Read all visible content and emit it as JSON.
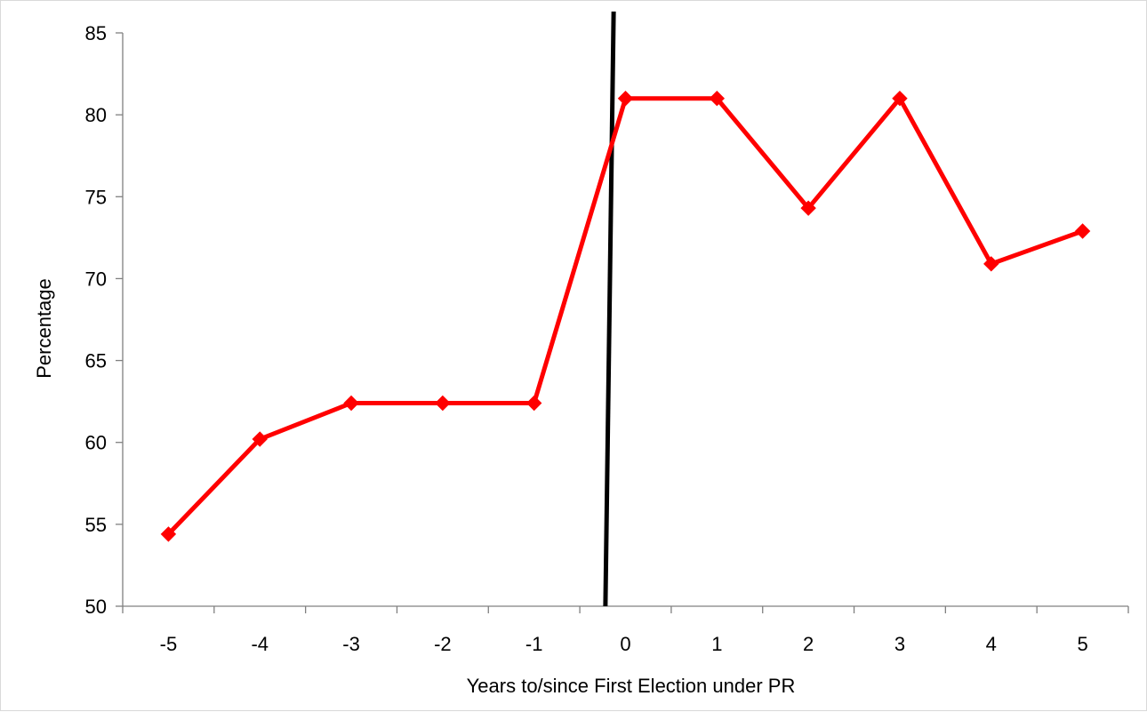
{
  "chart_data": {
    "type": "line",
    "title": "",
    "xlabel": "Years to/since First Election under PR",
    "ylabel": "Percentage",
    "categories": [
      "-5",
      "-4",
      "-3",
      "-2",
      "-1",
      "0",
      "1",
      "2",
      "3",
      "4",
      "5"
    ],
    "series": [
      {
        "values": [
          54.4,
          60.2,
          62.4,
          62.4,
          62.4,
          81.0,
          81.0,
          74.3,
          81.0,
          70.9,
          72.9
        ],
        "color": "#ff0000",
        "marker": "diamond"
      }
    ],
    "ylim": [
      50,
      85
    ],
    "yticks": [
      "50",
      "55",
      "60",
      "65",
      "70",
      "75",
      "80",
      "85"
    ],
    "grid": false,
    "legend": "none",
    "reference_line": {
      "description": "vertical black line marking first election under PR, between -1 and 0",
      "color": "#000000"
    }
  }
}
